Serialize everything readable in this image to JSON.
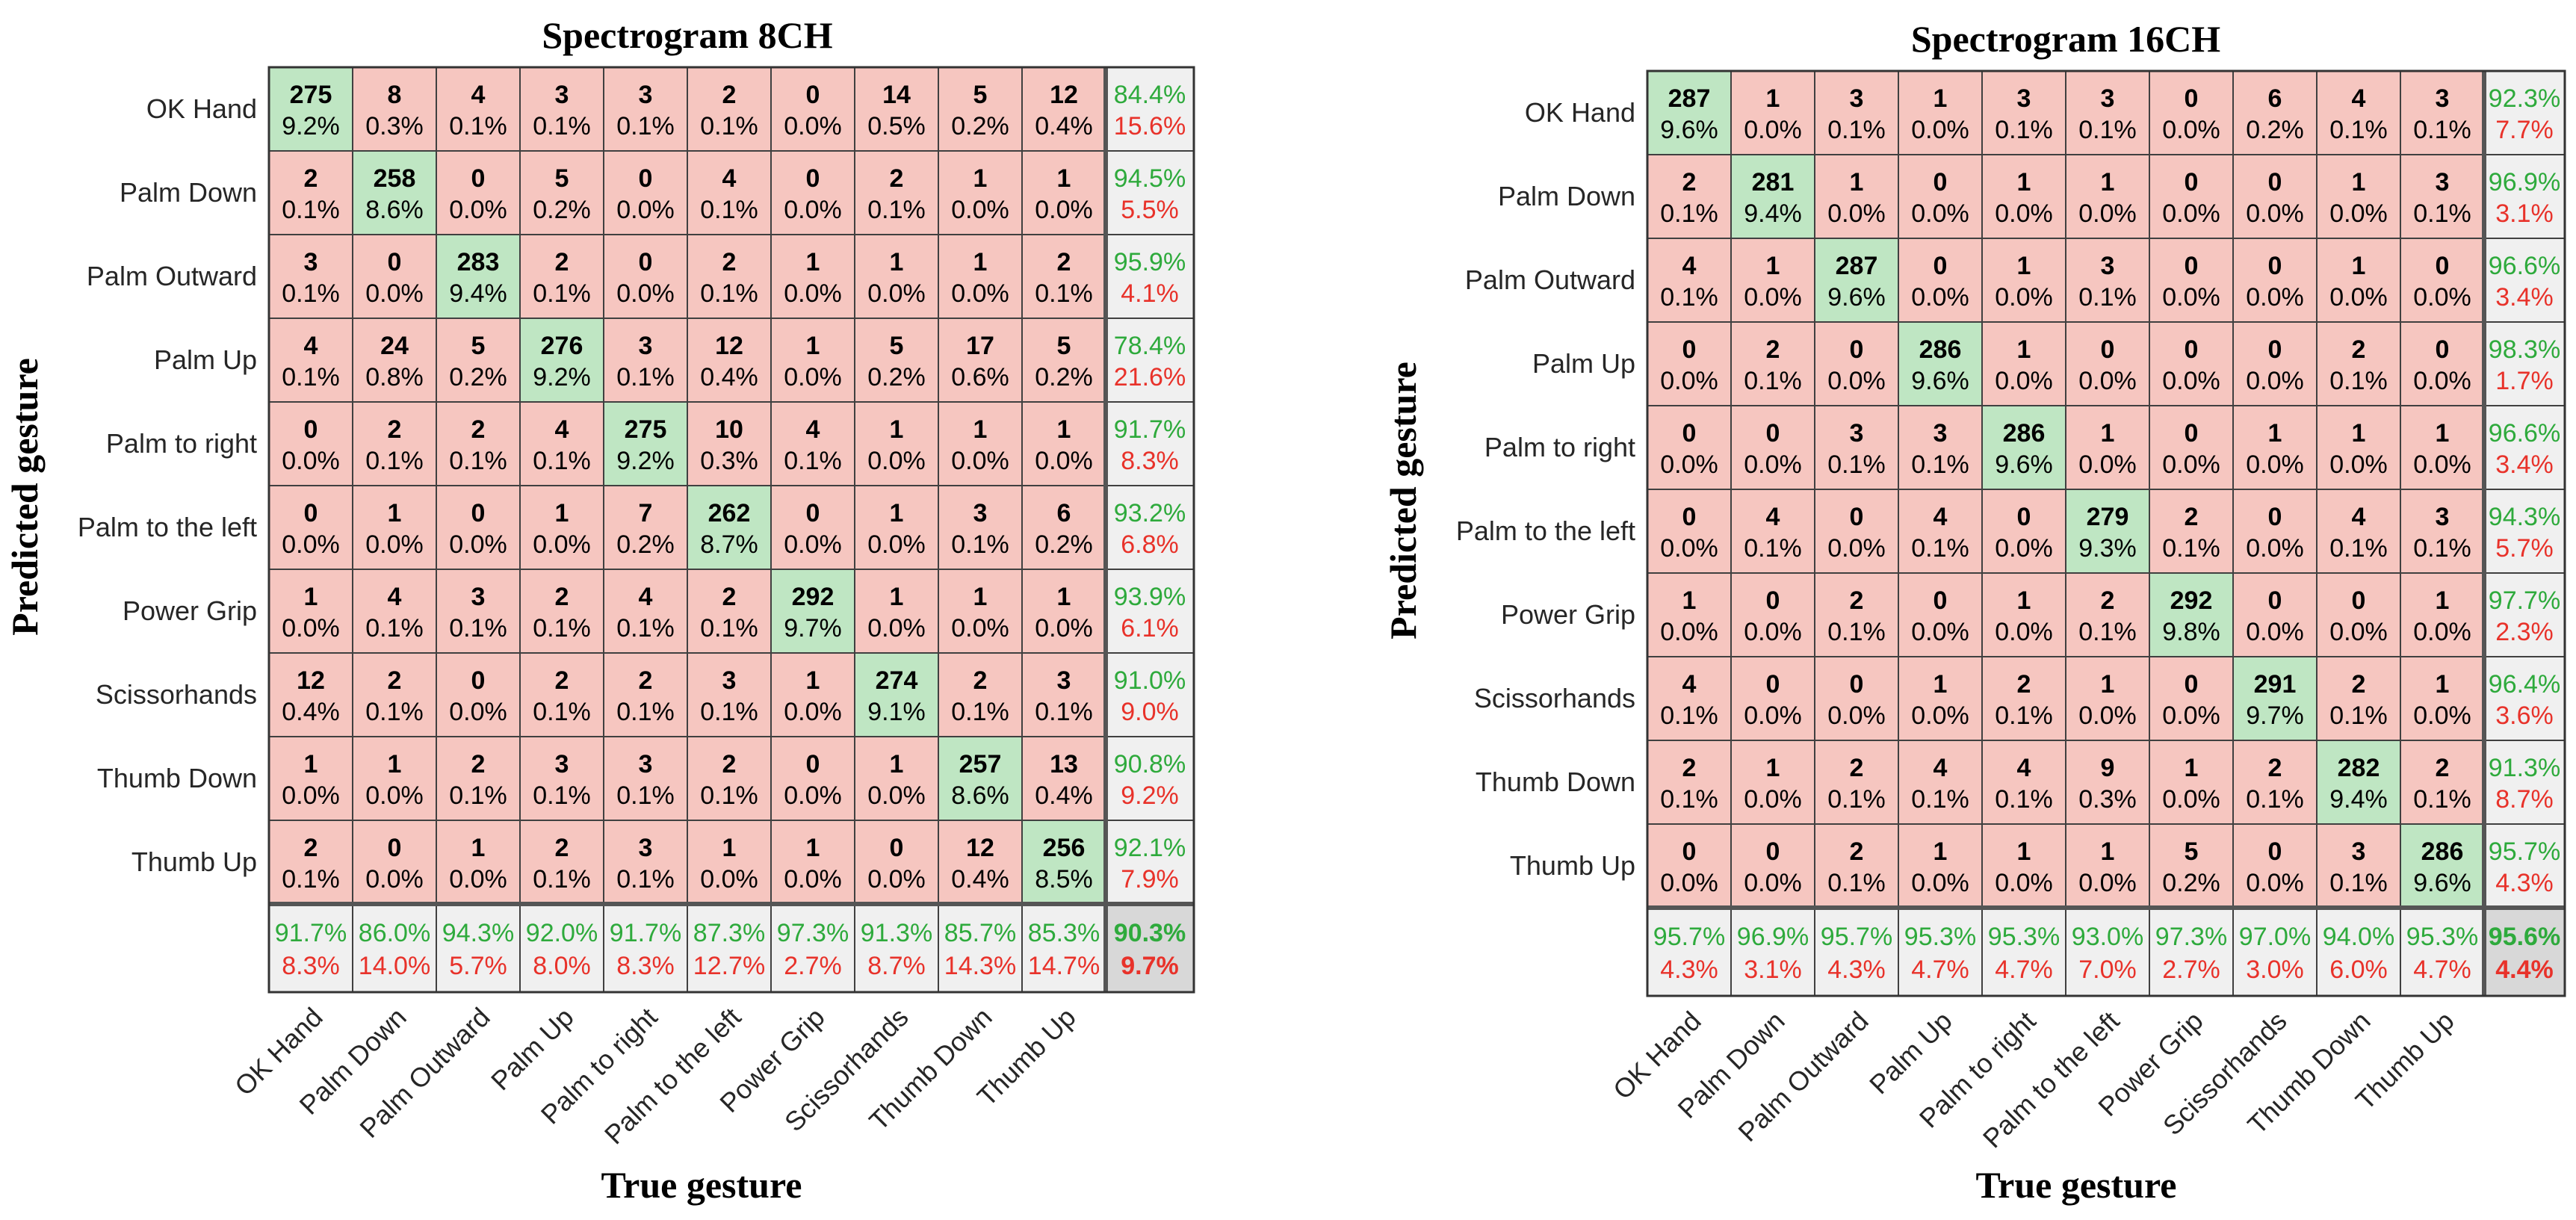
{
  "chart_data": [
    {
      "type": "heatmap",
      "title": "Spectrogram 8CH",
      "xlabel": "True gesture",
      "ylabel": "Predicted gesture",
      "classes": [
        "OK Hand",
        "Palm Down",
        "Palm Outward",
        "Palm Up",
        "Palm to right",
        "Palm to the left",
        "Power Grip",
        "Scissorhands",
        "Thumb Down",
        "Thumb Up"
      ],
      "counts": [
        [
          275,
          8,
          4,
          3,
          3,
          2,
          0,
          14,
          5,
          12
        ],
        [
          2,
          258,
          0,
          5,
          0,
          4,
          0,
          2,
          1,
          1
        ],
        [
          3,
          0,
          283,
          2,
          0,
          2,
          1,
          1,
          1,
          2
        ],
        [
          4,
          24,
          5,
          276,
          3,
          12,
          1,
          5,
          17,
          5
        ],
        [
          0,
          2,
          2,
          4,
          275,
          10,
          4,
          1,
          1,
          1
        ],
        [
          0,
          1,
          0,
          1,
          7,
          262,
          0,
          1,
          3,
          6
        ],
        [
          1,
          4,
          3,
          2,
          4,
          2,
          292,
          1,
          1,
          1
        ],
        [
          12,
          2,
          0,
          2,
          2,
          3,
          1,
          274,
          2,
          3
        ],
        [
          1,
          1,
          2,
          3,
          3,
          2,
          0,
          1,
          257,
          13
        ],
        [
          2,
          0,
          1,
          2,
          3,
          1,
          1,
          0,
          12,
          256
        ]
      ],
      "percents": [
        [
          "9.2%",
          "0.3%",
          "0.1%",
          "0.1%",
          "0.1%",
          "0.1%",
          "0.0%",
          "0.5%",
          "0.2%",
          "0.4%"
        ],
        [
          "0.1%",
          "8.6%",
          "0.0%",
          "0.2%",
          "0.0%",
          "0.1%",
          "0.0%",
          "0.1%",
          "0.0%",
          "0.0%"
        ],
        [
          "0.1%",
          "0.0%",
          "9.4%",
          "0.1%",
          "0.0%",
          "0.1%",
          "0.0%",
          "0.0%",
          "0.0%",
          "0.1%"
        ],
        [
          "0.1%",
          "0.8%",
          "0.2%",
          "9.2%",
          "0.1%",
          "0.4%",
          "0.0%",
          "0.2%",
          "0.6%",
          "0.2%"
        ],
        [
          "0.0%",
          "0.1%",
          "0.1%",
          "0.1%",
          "9.2%",
          "0.3%",
          "0.1%",
          "0.0%",
          "0.0%",
          "0.0%"
        ],
        [
          "0.0%",
          "0.0%",
          "0.0%",
          "0.0%",
          "0.2%",
          "8.7%",
          "0.0%",
          "0.0%",
          "0.1%",
          "0.2%"
        ],
        [
          "0.0%",
          "0.1%",
          "0.1%",
          "0.1%",
          "0.1%",
          "0.1%",
          "9.7%",
          "0.0%",
          "0.0%",
          "0.0%"
        ],
        [
          "0.4%",
          "0.1%",
          "0.0%",
          "0.1%",
          "0.1%",
          "0.1%",
          "0.0%",
          "9.1%",
          "0.1%",
          "0.1%"
        ],
        [
          "0.0%",
          "0.0%",
          "0.1%",
          "0.1%",
          "0.1%",
          "0.1%",
          "0.0%",
          "0.0%",
          "8.6%",
          "0.4%"
        ],
        [
          "0.1%",
          "0.0%",
          "0.0%",
          "0.1%",
          "0.1%",
          "0.0%",
          "0.0%",
          "0.0%",
          "0.4%",
          "8.5%"
        ]
      ],
      "row_summary": [
        [
          "84.4%",
          "15.6%"
        ],
        [
          "94.5%",
          "5.5%"
        ],
        [
          "95.9%",
          "4.1%"
        ],
        [
          "78.4%",
          "21.6%"
        ],
        [
          "91.7%",
          "8.3%"
        ],
        [
          "93.2%",
          "6.8%"
        ],
        [
          "93.9%",
          "6.1%"
        ],
        [
          "91.0%",
          "9.0%"
        ],
        [
          "90.8%",
          "9.2%"
        ],
        [
          "92.1%",
          "7.9%"
        ]
      ],
      "col_summary": [
        [
          "91.7%",
          "8.3%"
        ],
        [
          "86.0%",
          "14.0%"
        ],
        [
          "94.3%",
          "5.7%"
        ],
        [
          "92.0%",
          "8.0%"
        ],
        [
          "91.7%",
          "8.3%"
        ],
        [
          "87.3%",
          "12.7%"
        ],
        [
          "97.3%",
          "2.7%"
        ],
        [
          "91.3%",
          "8.7%"
        ],
        [
          "85.7%",
          "14.3%"
        ],
        [
          "85.3%",
          "14.7%"
        ]
      ],
      "overall": [
        "90.3%",
        "9.7%"
      ]
    },
    {
      "type": "heatmap",
      "title": "Spectrogram 16CH",
      "xlabel": "True gesture",
      "ylabel": "Predicted gesture",
      "classes": [
        "OK Hand",
        "Palm Down",
        "Palm Outward",
        "Palm Up",
        "Palm to right",
        "Palm to the left",
        "Power Grip",
        "Scissorhands",
        "Thumb Down",
        "Thumb Up"
      ],
      "counts": [
        [
          287,
          1,
          3,
          1,
          3,
          3,
          0,
          6,
          4,
          3
        ],
        [
          2,
          281,
          1,
          0,
          1,
          1,
          0,
          0,
          1,
          3
        ],
        [
          4,
          1,
          287,
          0,
          1,
          3,
          0,
          0,
          1,
          0
        ],
        [
          0,
          2,
          0,
          286,
          1,
          0,
          0,
          0,
          2,
          0
        ],
        [
          0,
          0,
          3,
          3,
          286,
          1,
          0,
          1,
          1,
          1
        ],
        [
          0,
          4,
          0,
          4,
          0,
          279,
          2,
          0,
          4,
          3
        ],
        [
          1,
          0,
          2,
          0,
          1,
          2,
          292,
          0,
          0,
          1
        ],
        [
          4,
          0,
          0,
          1,
          2,
          1,
          0,
          291,
          2,
          1
        ],
        [
          2,
          1,
          2,
          4,
          4,
          9,
          1,
          2,
          282,
          2
        ],
        [
          0,
          0,
          2,
          1,
          1,
          1,
          5,
          0,
          3,
          286
        ]
      ],
      "percents": [
        [
          "9.6%",
          "0.0%",
          "0.1%",
          "0.0%",
          "0.1%",
          "0.1%",
          "0.0%",
          "0.2%",
          "0.1%",
          "0.1%"
        ],
        [
          "0.1%",
          "9.4%",
          "0.0%",
          "0.0%",
          "0.0%",
          "0.0%",
          "0.0%",
          "0.0%",
          "0.0%",
          "0.1%"
        ],
        [
          "0.1%",
          "0.0%",
          "9.6%",
          "0.0%",
          "0.0%",
          "0.1%",
          "0.0%",
          "0.0%",
          "0.0%",
          "0.0%"
        ],
        [
          "0.0%",
          "0.1%",
          "0.0%",
          "9.6%",
          "0.0%",
          "0.0%",
          "0.0%",
          "0.0%",
          "0.1%",
          "0.0%"
        ],
        [
          "0.0%",
          "0.0%",
          "0.1%",
          "0.1%",
          "9.6%",
          "0.0%",
          "0.0%",
          "0.0%",
          "0.0%",
          "0.0%"
        ],
        [
          "0.0%",
          "0.1%",
          "0.0%",
          "0.1%",
          "0.0%",
          "9.3%",
          "0.1%",
          "0.0%",
          "0.1%",
          "0.1%"
        ],
        [
          "0.0%",
          "0.0%",
          "0.1%",
          "0.0%",
          "0.0%",
          "0.1%",
          "9.8%",
          "0.0%",
          "0.0%",
          "0.0%"
        ],
        [
          "0.1%",
          "0.0%",
          "0.0%",
          "0.0%",
          "0.1%",
          "0.0%",
          "0.0%",
          "9.7%",
          "0.1%",
          "0.0%"
        ],
        [
          "0.1%",
          "0.0%",
          "0.1%",
          "0.1%",
          "0.1%",
          "0.3%",
          "0.0%",
          "0.1%",
          "9.4%",
          "0.1%"
        ],
        [
          "0.0%",
          "0.0%",
          "0.1%",
          "0.0%",
          "0.0%",
          "0.0%",
          "0.2%",
          "0.0%",
          "0.1%",
          "9.6%"
        ]
      ],
      "row_summary": [
        [
          "92.3%",
          "7.7%"
        ],
        [
          "96.9%",
          "3.1%"
        ],
        [
          "96.6%",
          "3.4%"
        ],
        [
          "98.3%",
          "1.7%"
        ],
        [
          "96.6%",
          "3.4%"
        ],
        [
          "94.3%",
          "5.7%"
        ],
        [
          "97.7%",
          "2.3%"
        ],
        [
          "96.4%",
          "3.6%"
        ],
        [
          "91.3%",
          "8.7%"
        ],
        [
          "95.7%",
          "4.3%"
        ]
      ],
      "col_summary": [
        [
          "95.7%",
          "4.3%"
        ],
        [
          "96.9%",
          "3.1%"
        ],
        [
          "95.7%",
          "4.3%"
        ],
        [
          "95.3%",
          "4.7%"
        ],
        [
          "95.3%",
          "4.7%"
        ],
        [
          "93.0%",
          "7.0%"
        ],
        [
          "97.3%",
          "2.7%"
        ],
        [
          "97.0%",
          "3.0%"
        ],
        [
          "94.0%",
          "6.0%"
        ],
        [
          "95.3%",
          "4.7%"
        ]
      ],
      "overall": [
        "95.6%",
        "4.4%"
      ]
    }
  ],
  "colors": {
    "diagonal": "#bfe6c3",
    "offdiagonal": "#f6c6c0",
    "summary": "#f0f0f0",
    "overall": "#d8d8d8",
    "good_text": "#2eaa3c",
    "bad_text": "#e8322a",
    "grid": "#404040"
  }
}
